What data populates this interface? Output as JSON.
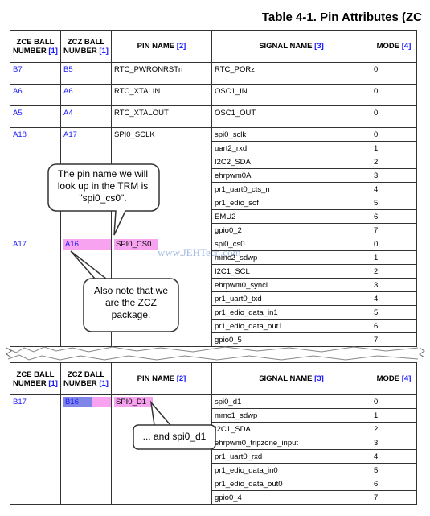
{
  "title": "Table 4-1. Pin Attributes (ZC",
  "tables": [
    {
      "header": [
        {
          "text": "ZCE BALL NUMBER",
          "ref": "[1]"
        },
        {
          "text": "ZCZ BALL NUMBER",
          "ref": "[1]"
        },
        {
          "text": "PIN NAME",
          "ref": "[2]"
        },
        {
          "text": "SIGNAL NAME",
          "ref": "[3]"
        },
        {
          "text": "MODE",
          "ref": "[4]"
        }
      ],
      "rows": [
        {
          "zce": "B7",
          "zcz": "B5",
          "pin": "RTC_PWRONRSTn",
          "signals": [
            {
              "name": "RTC_PORz",
              "mode": "0"
            }
          ]
        },
        {
          "zce": "A6",
          "zcz": "A6",
          "pin": "RTC_XTALIN",
          "signals": [
            {
              "name": "OSC1_IN",
              "mode": "0"
            }
          ]
        },
        {
          "zce": "A5",
          "zcz": "A4",
          "pin": "RTC_XTALOUT",
          "signals": [
            {
              "name": "OSC1_OUT",
              "mode": "0"
            }
          ]
        },
        {
          "zce": "A18",
          "zcz": "A17",
          "pin": "SPI0_SCLK",
          "signals": [
            {
              "name": "spi0_sclk",
              "mode": "0"
            },
            {
              "name": "uart2_rxd",
              "mode": "1"
            },
            {
              "name": "I2C2_SDA",
              "mode": "2"
            },
            {
              "name": "ehrpwm0A",
              "mode": "3"
            },
            {
              "name": "pr1_uart0_cts_n",
              "mode": "4"
            },
            {
              "name": "pr1_edio_sof",
              "mode": "5"
            },
            {
              "name": "EMU2",
              "mode": "6"
            },
            {
              "name": "gpio0_2",
              "mode": "7"
            }
          ]
        },
        {
          "zce": "A17",
          "zcz": "A16",
          "pin": "SPI0_CS0",
          "signals": [
            {
              "name": "spi0_cs0",
              "mode": "0"
            },
            {
              "name": "mmc2_sdwp",
              "mode": "1"
            },
            {
              "name": "I2C1_SCL",
              "mode": "2"
            },
            {
              "name": "ehrpwm0_synci",
              "mode": "3"
            },
            {
              "name": "pr1_uart0_txd",
              "mode": "4"
            },
            {
              "name": "pr1_edio_data_in1",
              "mode": "5"
            },
            {
              "name": "pr1_edio_data_out1",
              "mode": "6"
            },
            {
              "name": "gpio0_5",
              "mode": "7"
            }
          ]
        }
      ]
    },
    {
      "header": [
        {
          "text": "ZCE BALL NUMBER",
          "ref": "[1]"
        },
        {
          "text": "ZCZ BALL NUMBER",
          "ref": "[1]"
        },
        {
          "text": "PIN NAME",
          "ref": "[2]"
        },
        {
          "text": "SIGNAL NAME",
          "ref": "[3]"
        },
        {
          "text": "MODE",
          "ref": "[4]"
        }
      ],
      "rows": [
        {
          "zce": "B17",
          "zcz": "B16",
          "pin": "SPI0_D1",
          "signals": [
            {
              "name": "spi0_d1",
              "mode": "0"
            },
            {
              "name": "mmc1_sdwp",
              "mode": "1"
            },
            {
              "name": "I2C1_SDA",
              "mode": "2"
            },
            {
              "name": "ehrpwm0_tripzone_input",
              "mode": "3"
            },
            {
              "name": "pr1_uart0_rxd",
              "mode": "4"
            },
            {
              "name": "pr1_edio_data_in0",
              "mode": "5"
            },
            {
              "name": "pr1_edio_data_out0",
              "mode": "6"
            },
            {
              "name": "gpio0_4",
              "mode": "7"
            }
          ]
        }
      ]
    }
  ],
  "watermark": "www.JEHTech.com",
  "callouts": [
    {
      "lines": [
        "The pin name we will",
        "look up in the TRM is",
        "\"spi0_cs0\"."
      ]
    },
    {
      "lines": [
        "Also note that we",
        "are the ZCZ",
        "package."
      ]
    },
    {
      "lines": [
        "... and spi0_d1"
      ]
    }
  ]
}
